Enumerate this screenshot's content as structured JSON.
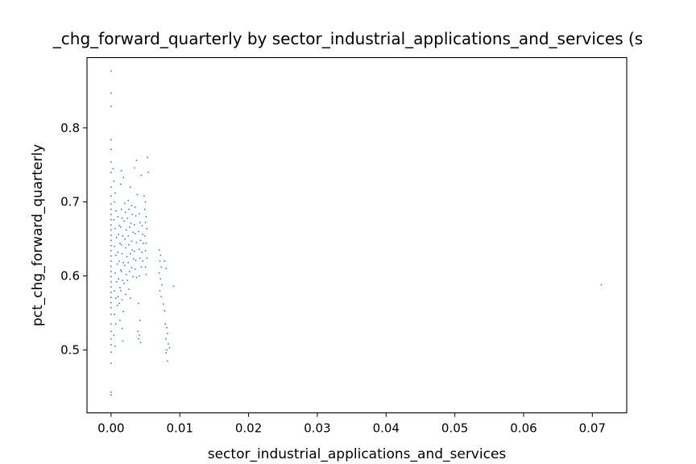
{
  "chart_data": {
    "type": "scatter",
    "title": "_chg_forward_quarterly by sector_industrial_applications_and_services (s",
    "xlabel": "sector_industrial_applications_and_services",
    "ylabel": "pct_chg_forward_quarterly",
    "xlim": [
      -0.0035,
      0.075
    ],
    "ylim": [
      0.415,
      0.895
    ],
    "xticks": [
      0.0,
      0.01,
      0.02,
      0.03,
      0.04,
      0.05,
      0.06,
      0.07
    ],
    "xtick_labels": [
      "0.00",
      "0.01",
      "0.02",
      "0.03",
      "0.04",
      "0.05",
      "0.06",
      "0.07"
    ],
    "yticks": [
      0.5,
      0.6,
      0.7,
      0.8
    ],
    "ytick_labels": [
      "0.5",
      "0.6",
      "0.7",
      "0.8"
    ],
    "grid": false,
    "legend": "none",
    "marker_color": "#1f77b4",
    "series": [
      {
        "points": [
          [
            0.0,
            0.877
          ],
          [
            0.0,
            0.847
          ],
          [
            0.0,
            0.829
          ],
          [
            0.0,
            0.784
          ],
          [
            0.0,
            0.771
          ],
          [
            0.0,
            0.754
          ],
          [
            0.0,
            0.74
          ],
          [
            0.0,
            0.72
          ],
          [
            0.0,
            0.708
          ],
          [
            0.0,
            0.697
          ],
          [
            0.0,
            0.69
          ],
          [
            0.0,
            0.683
          ],
          [
            0.0,
            0.676
          ],
          [
            0.0,
            0.669
          ],
          [
            0.0,
            0.662
          ],
          [
            0.0,
            0.655
          ],
          [
            0.0,
            0.648
          ],
          [
            0.0,
            0.641
          ],
          [
            0.0,
            0.634
          ],
          [
            0.0,
            0.627
          ],
          [
            0.0,
            0.62
          ],
          [
            0.0,
            0.613
          ],
          [
            0.0,
            0.606
          ],
          [
            0.0,
            0.599
          ],
          [
            0.0,
            0.592
          ],
          [
            0.0,
            0.585
          ],
          [
            0.0,
            0.578
          ],
          [
            0.0,
            0.571
          ],
          [
            0.0,
            0.564
          ],
          [
            0.0,
            0.557
          ],
          [
            0.0,
            0.548
          ],
          [
            0.0,
            0.535
          ],
          [
            0.0,
            0.525
          ],
          [
            0.0,
            0.515
          ],
          [
            0.0,
            0.507
          ],
          [
            0.0,
            0.497
          ],
          [
            0.0,
            0.482
          ],
          [
            0.0,
            0.443
          ],
          [
            0.0,
            0.439
          ],
          [
            0.0003,
            0.745
          ],
          [
            0.0004,
            0.728
          ],
          [
            0.0006,
            0.712
          ],
          [
            0.0005,
            0.7
          ],
          [
            0.0007,
            0.688
          ],
          [
            0.0004,
            0.676
          ],
          [
            0.0006,
            0.664
          ],
          [
            0.0008,
            0.652
          ],
          [
            0.0005,
            0.64
          ],
          [
            0.0007,
            0.628
          ],
          [
            0.0009,
            0.616
          ],
          [
            0.0006,
            0.604
          ],
          [
            0.0008,
            0.592
          ],
          [
            0.0005,
            0.58
          ],
          [
            0.0007,
            0.57
          ],
          [
            0.0009,
            0.56
          ],
          [
            0.0005,
            0.548
          ],
          [
            0.0007,
            0.535
          ],
          [
            0.0004,
            0.52
          ],
          [
            0.0006,
            0.505
          ],
          [
            0.001,
            0.68
          ],
          [
            0.0012,
            0.668
          ],
          [
            0.0011,
            0.656
          ],
          [
            0.0013,
            0.644
          ],
          [
            0.001,
            0.632
          ],
          [
            0.0012,
            0.62
          ],
          [
            0.0014,
            0.608
          ],
          [
            0.0011,
            0.596
          ],
          [
            0.0013,
            0.584
          ],
          [
            0.001,
            0.572
          ],
          [
            0.0012,
            0.563
          ],
          [
            0.0015,
            0.69
          ],
          [
            0.0016,
            0.678
          ],
          [
            0.0014,
            0.666
          ],
          [
            0.0017,
            0.654
          ],
          [
            0.0015,
            0.642
          ],
          [
            0.0016,
            0.63
          ],
          [
            0.0018,
            0.618
          ],
          [
            0.0015,
            0.606
          ],
          [
            0.0017,
            0.594
          ],
          [
            0.0014,
            0.58
          ],
          [
            0.0016,
            0.568
          ],
          [
            0.0015,
            0.742
          ],
          [
            0.0018,
            0.733
          ],
          [
            0.0014,
            0.724
          ],
          [
            0.002,
            0.698
          ],
          [
            0.0021,
            0.686
          ],
          [
            0.0019,
            0.674
          ],
          [
            0.0022,
            0.662
          ],
          [
            0.002,
            0.65
          ],
          [
            0.0021,
            0.638
          ],
          [
            0.0023,
            0.626
          ],
          [
            0.002,
            0.614
          ],
          [
            0.0022,
            0.602
          ],
          [
            0.0019,
            0.59
          ],
          [
            0.0021,
            0.575
          ],
          [
            0.0018,
            0.552
          ],
          [
            0.0013,
            0.54
          ],
          [
            0.0016,
            0.529
          ],
          [
            0.0017,
            0.512
          ],
          [
            0.0025,
            0.702
          ],
          [
            0.0026,
            0.69
          ],
          [
            0.0024,
            0.678
          ],
          [
            0.0027,
            0.666
          ],
          [
            0.0025,
            0.654
          ],
          [
            0.0026,
            0.642
          ],
          [
            0.0028,
            0.63
          ],
          [
            0.0025,
            0.618
          ],
          [
            0.0027,
            0.606
          ],
          [
            0.0024,
            0.594
          ],
          [
            0.0026,
            0.582
          ],
          [
            0.0028,
            0.57
          ],
          [
            0.003,
            0.695
          ],
          [
            0.0031,
            0.683
          ],
          [
            0.0029,
            0.671
          ],
          [
            0.0032,
            0.659
          ],
          [
            0.003,
            0.647
          ],
          [
            0.0031,
            0.635
          ],
          [
            0.0033,
            0.623
          ],
          [
            0.003,
            0.611
          ],
          [
            0.0032,
            0.599
          ],
          [
            0.0035,
            0.693
          ],
          [
            0.0036,
            0.681
          ],
          [
            0.0034,
            0.669
          ],
          [
            0.0035,
            0.657
          ],
          [
            0.0037,
            0.645
          ],
          [
            0.0034,
            0.633
          ],
          [
            0.0036,
            0.621
          ],
          [
            0.0035,
            0.609
          ],
          [
            0.0037,
            0.598
          ],
          [
            0.0037,
            0.756
          ],
          [
            0.0034,
            0.746
          ],
          [
            0.0044,
            0.736
          ],
          [
            0.0028,
            0.72
          ],
          [
            0.0038,
            0.71
          ],
          [
            0.0041,
            0.684
          ],
          [
            0.0042,
            0.672
          ],
          [
            0.004,
            0.66
          ],
          [
            0.0043,
            0.648
          ],
          [
            0.0041,
            0.636
          ],
          [
            0.0042,
            0.624
          ],
          [
            0.0044,
            0.612
          ],
          [
            0.0041,
            0.6
          ],
          [
            0.004,
            0.563
          ],
          [
            0.0042,
            0.54
          ],
          [
            0.0039,
            0.525
          ],
          [
            0.0041,
            0.52
          ],
          [
            0.004,
            0.515
          ],
          [
            0.0043,
            0.51
          ],
          [
            0.0045,
            0.668
          ],
          [
            0.0046,
            0.656
          ],
          [
            0.0047,
            0.644
          ],
          [
            0.0045,
            0.632
          ],
          [
            0.0046,
            0.62
          ],
          [
            0.0048,
            0.708
          ],
          [
            0.005,
            0.7
          ],
          [
            0.0049,
            0.69
          ],
          [
            0.0051,
            0.68
          ],
          [
            0.005,
            0.672
          ],
          [
            0.0052,
            0.664
          ],
          [
            0.0049,
            0.654
          ],
          [
            0.0051,
            0.644
          ],
          [
            0.005,
            0.634
          ],
          [
            0.0052,
            0.624
          ],
          [
            0.005,
            0.612
          ],
          [
            0.0051,
            0.602
          ],
          [
            0.0053,
            0.76
          ],
          [
            0.0054,
            0.74
          ],
          [
            0.007,
            0.635
          ],
          [
            0.0072,
            0.628
          ],
          [
            0.0071,
            0.62
          ],
          [
            0.0073,
            0.612
          ],
          [
            0.007,
            0.604
          ],
          [
            0.0072,
            0.596
          ],
          [
            0.0074,
            0.588
          ],
          [
            0.0071,
            0.58
          ],
          [
            0.0073,
            0.572
          ],
          [
            0.0078,
            0.62
          ],
          [
            0.008,
            0.61
          ],
          [
            0.0076,
            0.562
          ],
          [
            0.0078,
            0.553
          ],
          [
            0.0079,
            0.535
          ],
          [
            0.0081,
            0.53
          ],
          [
            0.0082,
            0.522
          ],
          [
            0.008,
            0.515
          ],
          [
            0.0083,
            0.508
          ],
          [
            0.0081,
            0.5
          ],
          [
            0.0085,
            0.503
          ],
          [
            0.008,
            0.496
          ],
          [
            0.0082,
            0.485
          ],
          [
            0.0091,
            0.586
          ],
          [
            0.0713,
            0.588
          ]
        ]
      }
    ]
  }
}
